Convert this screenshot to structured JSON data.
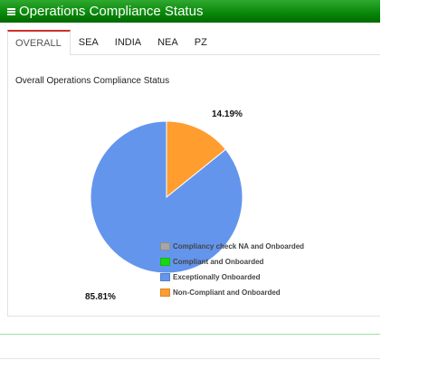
{
  "header": {
    "title": "Operations Compliance Status"
  },
  "tabs": [
    {
      "label": "OVERALL",
      "active": true
    },
    {
      "label": "SEA"
    },
    {
      "label": "INDIA"
    },
    {
      "label": "NEA"
    },
    {
      "label": "PZ"
    }
  ],
  "chart_data": {
    "type": "pie",
    "title": "Overall Operations Compliance Status",
    "slices": [
      {
        "name": "Compliancy check NA and Onboarded",
        "value": 0,
        "color": "#a6a6a6"
      },
      {
        "name": "Compliant and Onboarded",
        "value": 0,
        "color": "#19d619"
      },
      {
        "name": "Exceptionally Onboarded",
        "value": 85.81,
        "label": "85.81%",
        "color": "#6495ed"
      },
      {
        "name": "Non-Compliant and Onboarded",
        "value": 14.19,
        "label": "14.19%",
        "color": "#ff9d2f"
      }
    ],
    "legend_position": "bottom-right"
  }
}
